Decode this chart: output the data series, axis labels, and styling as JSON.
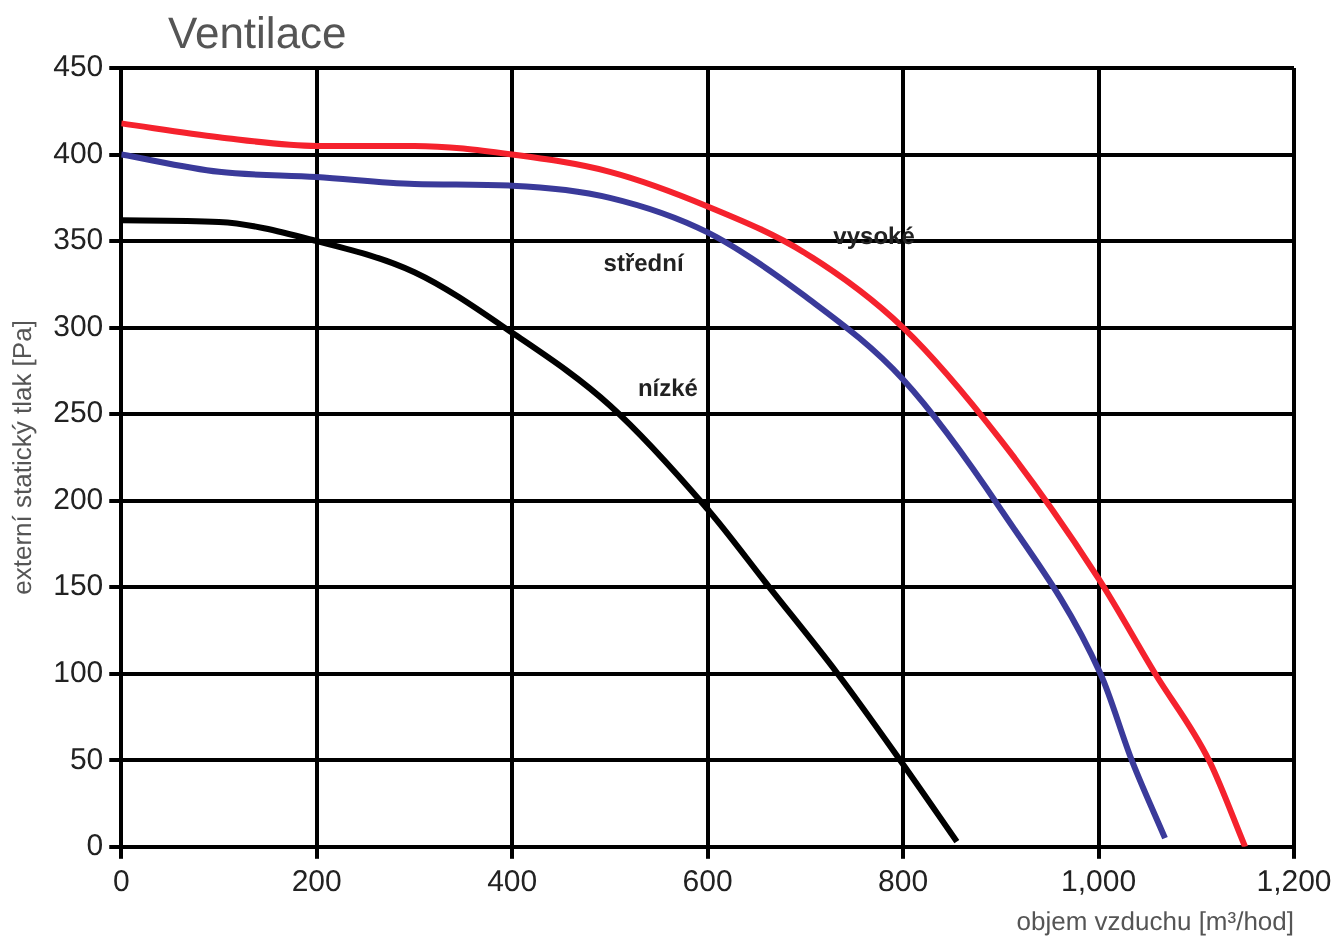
{
  "chart_data": {
    "type": "line",
    "title": "Ventilace",
    "xlabel": "objem vzduchu [m³/hod]",
    "ylabel": "externí statický tlak [Pa]",
    "xlim": [
      0,
      1200
    ],
    "xticks": [
      0,
      200,
      400,
      600,
      800,
      {
        "value": 1000,
        "label": "1,000"
      },
      {
        "value": 1200,
        "label": "1,200"
      }
    ],
    "ylim": [
      0,
      450
    ],
    "yticks": [
      0,
      50,
      100,
      150,
      200,
      250,
      300,
      350,
      400,
      450
    ],
    "grid": true,
    "legend": false,
    "marker": "none",
    "line_style": "solid",
    "series": [
      {
        "name": "vysoké",
        "color": "#f5222d",
        "x": [
          0,
          100,
          200,
          300,
          400,
          500,
          600,
          700,
          800,
          900,
          1000,
          1058,
          1113,
          1150
        ],
        "values": [
          418,
          410,
          405,
          405,
          400,
          390,
          370,
          343,
          300,
          235,
          155,
          100,
          50,
          0
        ]
      },
      {
        "name": "střední",
        "color": "#3a3a9a",
        "x": [
          0,
          100,
          200,
          300,
          400,
          500,
          600,
          700,
          800,
          900,
          1002,
          1034,
          1068
        ],
        "values": [
          400,
          390,
          387,
          383,
          382,
          375,
          355,
          318,
          270,
          195,
          100,
          50,
          5
        ]
      },
      {
        "name": "nízké",
        "color": "#000000",
        "x": [
          0,
          100,
          200,
          300,
          400,
          500,
          600,
          663,
          733,
          797,
          855
        ],
        "values": [
          362,
          361,
          350,
          332,
          297,
          255,
          195,
          150,
          100,
          50,
          3
        ]
      }
    ]
  }
}
